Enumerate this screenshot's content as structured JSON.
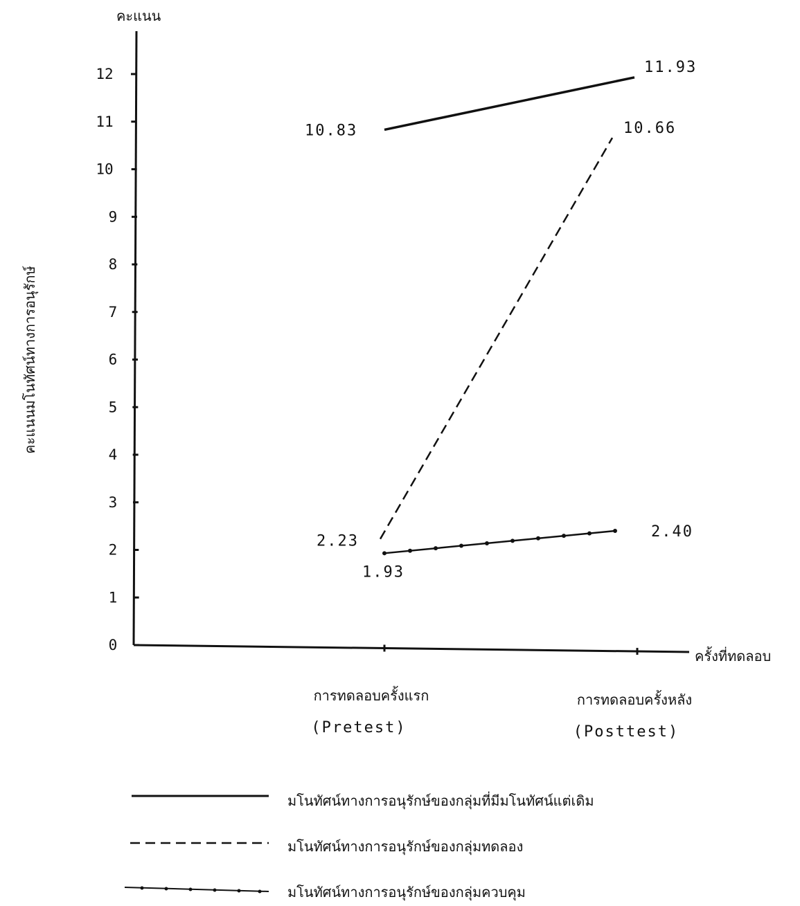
{
  "chart_data": {
    "type": "line",
    "title": "",
    "ylabel_top": "คะแนน",
    "ylabel": "คะแนนมโนทัศน์ทางการอนุรักษ์",
    "xlabel": "ครั้งที่ทดลอบ",
    "ylim": [
      0,
      12
    ],
    "yticks": [
      "0",
      "1",
      "2",
      "3",
      "4",
      "5",
      "6",
      "7",
      "8",
      "9",
      "10",
      "11",
      "12"
    ],
    "categories": [
      {
        "thai": "การทดลอบครั้งแรก",
        "eng": "(Pretest)"
      },
      {
        "thai": "การทดลอบครั้งหลัง",
        "eng": "(Posttest)"
      }
    ],
    "series": [
      {
        "name": "มโนทัศน์ทางการอนุรักษ์ของกลุ่มที่มีมโนทัศน์แต่เดิม",
        "style": "solid",
        "values": [
          10.83,
          11.93
        ],
        "labels": [
          "10.83",
          "11.93"
        ]
      },
      {
        "name": "มโนทัศน์ทางการอนุรักษ์ของกลุ่มทดลอง",
        "style": "dashed",
        "values": [
          2.23,
          10.66
        ],
        "labels": [
          "2.23",
          "10.66"
        ]
      },
      {
        "name": "มโนทัศน์ทางการอนุรักษ์ของกลุ่มควบคุม",
        "style": "dot-dash",
        "values": [
          1.93,
          2.4
        ],
        "labels": [
          "1.93",
          "2.40"
        ]
      }
    ],
    "grid": false,
    "legend_position": "bottom",
    "color": "#111111"
  }
}
